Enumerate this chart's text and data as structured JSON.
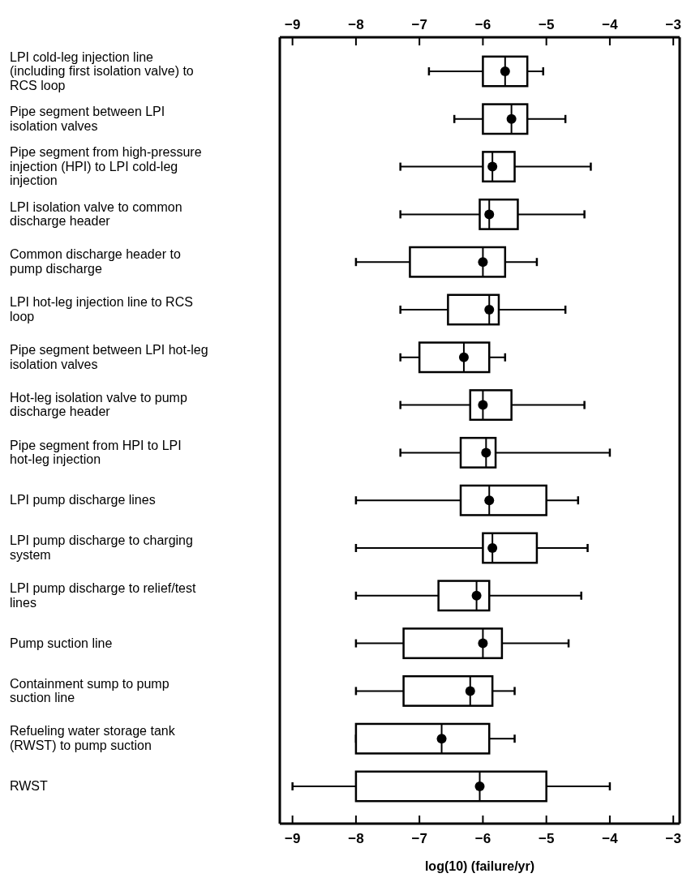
{
  "chart_data": {
    "type": "box",
    "orientation": "horizontal",
    "xlabel": "log(10) (failure/yr)",
    "categories": [
      "LPI cold-leg injection line (including first isolation valve) to RCS loop",
      "Pipe segment between LPI isolation valves",
      "Pipe segment from high-pressure injection (HPI) to LPI cold-leg injection",
      "LPI isolation valve to common discharge header",
      "Common discharge header to pump discharge",
      "LPI hot-leg injection line to RCS loop",
      "Pipe segment between LPI hot-leg isolation valves",
      "Hot-leg isolation valve to pump discharge header",
      "Pipe segment from HPI to LPI hot-leg injection",
      "LPI pump discharge lines",
      "LPI pump discharge to charging system",
      "LPI pump discharge to relief/test lines",
      "Pump suction line",
      "Containment sump to pump suction line",
      "Refueling water storage tank (RWST) to pump suction",
      "RWST"
    ],
    "boxes": [
      {
        "low": -6.85,
        "q1": -6.0,
        "median": -5.65,
        "q3": -5.3,
        "high": -5.05,
        "mean": -5.65
      },
      {
        "low": -6.45,
        "q1": -6.0,
        "median": -5.55,
        "q3": -5.3,
        "high": -4.7,
        "mean": -5.55
      },
      {
        "low": -7.3,
        "q1": -6.0,
        "median": -5.85,
        "q3": -5.5,
        "high": -4.3,
        "mean": -5.85
      },
      {
        "low": -7.3,
        "q1": -6.05,
        "median": -5.9,
        "q3": -5.45,
        "high": -4.4,
        "mean": -5.9
      },
      {
        "low": -8.0,
        "q1": -7.15,
        "median": -6.0,
        "q3": -5.65,
        "high": -5.15,
        "mean": -6.0
      },
      {
        "low": -7.3,
        "q1": -6.55,
        "median": -5.9,
        "q3": -5.75,
        "high": -4.7,
        "mean": -5.9
      },
      {
        "low": -7.3,
        "q1": -7.0,
        "median": -6.3,
        "q3": -5.9,
        "high": -5.65,
        "mean": -6.3
      },
      {
        "low": -7.3,
        "q1": -6.2,
        "median": -6.0,
        "q3": -5.55,
        "high": -4.4,
        "mean": -6.0
      },
      {
        "low": -7.3,
        "q1": -6.35,
        "median": -5.95,
        "q3": -5.8,
        "high": -4.0,
        "mean": -5.95
      },
      {
        "low": -8.0,
        "q1": -6.35,
        "median": -5.9,
        "q3": -5.0,
        "high": -4.5,
        "mean": -5.9
      },
      {
        "low": -8.0,
        "q1": -6.0,
        "median": -5.85,
        "q3": -5.15,
        "high": -4.35,
        "mean": -5.85
      },
      {
        "low": -8.0,
        "q1": -6.7,
        "median": -6.1,
        "q3": -5.9,
        "high": -4.45,
        "mean": -6.1
      },
      {
        "low": -8.0,
        "q1": -7.25,
        "median": -6.0,
        "q3": -5.7,
        "high": -4.65,
        "mean": -6.0
      },
      {
        "low": -8.0,
        "q1": -7.25,
        "median": -6.2,
        "q3": -5.85,
        "high": -5.5,
        "mean": -6.2
      },
      {
        "low": -8.0,
        "q1": -8.0,
        "median": -6.65,
        "q3": -5.9,
        "high": -5.5,
        "mean": -6.65
      },
      {
        "low": -9.0,
        "q1": -8.0,
        "median": -6.05,
        "q3": -5.0,
        "high": -4.0,
        "mean": -6.05
      }
    ],
    "xlim": [
      -9.2,
      -2.9
    ],
    "xticks": [
      -9,
      -8,
      -7,
      -6,
      -5,
      -4,
      -3
    ],
    "x2lim": [
      -9.2,
      -2.9
    ],
    "x2ticks": [
      -9,
      -8,
      -7,
      -6,
      -5,
      -4,
      -3
    ]
  }
}
